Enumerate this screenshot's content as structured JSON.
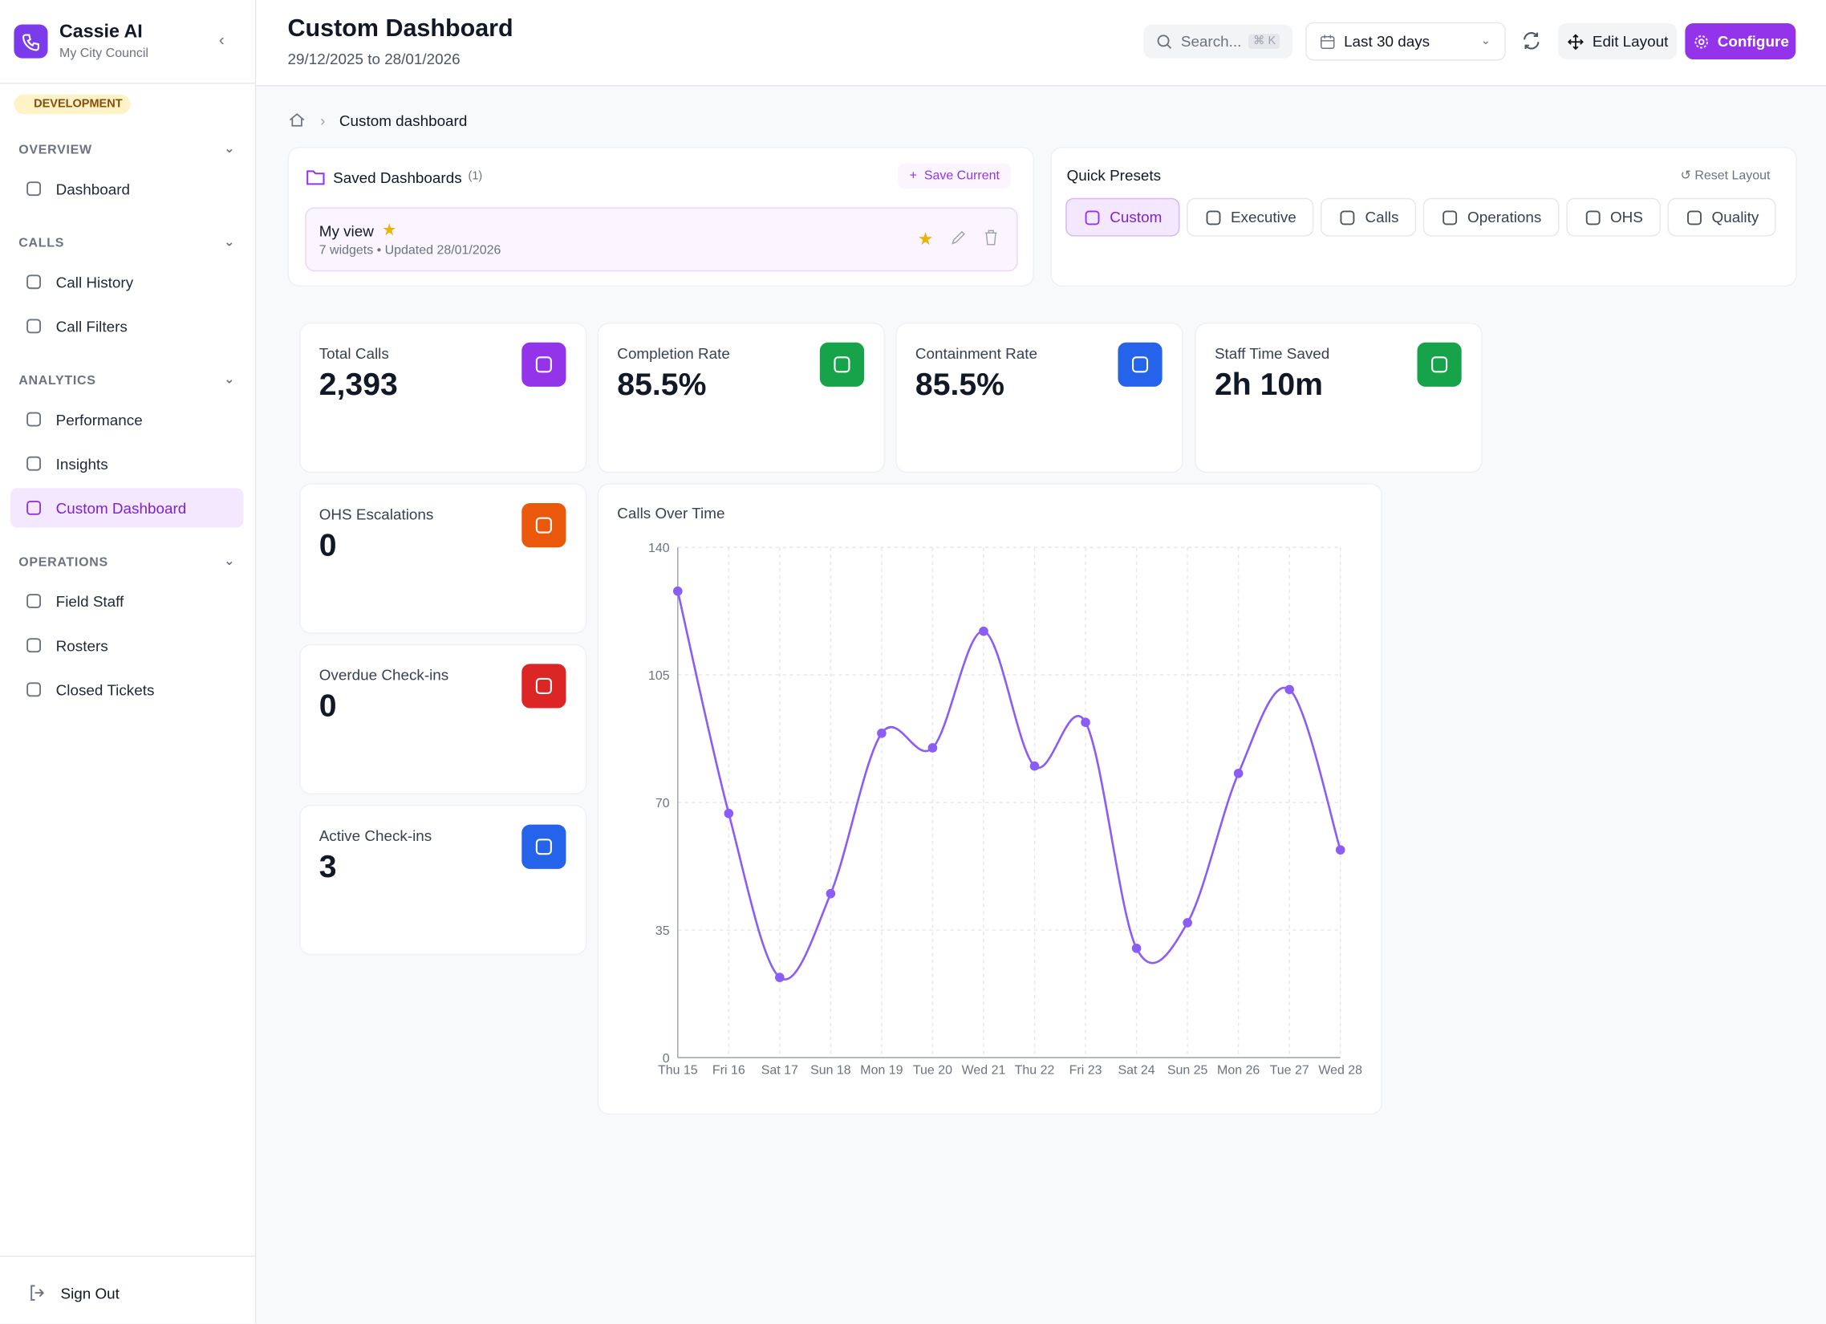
{
  "sidebar": {
    "app_name": "Cassie AI",
    "org": "My City Council",
    "env_badge": "DEVELOPMENT",
    "sections": [
      {
        "title": "OVERVIEW",
        "items": [
          "Dashboard"
        ]
      },
      {
        "title": "CALLS",
        "items": [
          "Call History",
          "Call Filters"
        ]
      },
      {
        "title": "ANALYTICS",
        "items": [
          "Performance",
          "Insights",
          "Custom Dashboard"
        ]
      },
      {
        "title": "OPERATIONS",
        "items": [
          "Field Staff",
          "Rosters",
          "Closed Tickets"
        ]
      }
    ],
    "sign_out": "Sign Out"
  },
  "header": {
    "title": "Custom Dashboard",
    "date_range": "29/12/2025 to 28/01/2026",
    "search": "Search...",
    "shortcut": "⌘ K",
    "period": "Last 30 days",
    "edit_layout": "Edit Layout",
    "configure": "Configure"
  },
  "breadcrumb": "Custom dashboard",
  "saved": {
    "title": "Saved Dashboards",
    "count": "(1)",
    "save_current": "Save Current",
    "item": {
      "name": "My view",
      "meta": "7 widgets • Updated 28/01/2026"
    }
  },
  "presets": {
    "title": "Quick Presets",
    "reset": "Reset Layout",
    "items": [
      "Custom",
      "Executive",
      "Calls",
      "Operations",
      "OHS",
      "Quality"
    ]
  },
  "kpis": [
    {
      "label": "Total Calls",
      "value": "2,393",
      "color": "#9333ea"
    },
    {
      "label": "Completion Rate",
      "value": "85.5%",
      "color": "#16a34a"
    },
    {
      "label": "Containment Rate",
      "value": "85.5%",
      "color": "#2563eb"
    },
    {
      "label": "Staff Time Saved",
      "value": "2h 10m",
      "color": "#16a34a"
    },
    {
      "label": "OHS Escalations",
      "value": "0",
      "color": "#ea580c"
    },
    {
      "label": "Overdue Check-ins",
      "value": "0",
      "color": "#dc2626"
    },
    {
      "label": "Active Check-ins",
      "value": "3",
      "color": "#2563eb"
    }
  ],
  "chart_data": {
    "type": "line",
    "title": "Calls Over Time",
    "categories": [
      "Thu 15",
      "Fri 16",
      "Sat 17",
      "Sun 18",
      "Mon 19",
      "Tue 20",
      "Wed 21",
      "Thu 22",
      "Fri 23",
      "Sat 24",
      "Sun 25",
      "Mon 26",
      "Tue 27",
      "Wed 28"
    ],
    "values": [
      128,
      67,
      22,
      45,
      89,
      85,
      117,
      80,
      92,
      30,
      37,
      78,
      101,
      57
    ],
    "color": "#8b5cf6",
    "ylim": [
      0,
      140
    ],
    "yticks": [
      0,
      35,
      70,
      105,
      140
    ],
    "grid": true
  }
}
